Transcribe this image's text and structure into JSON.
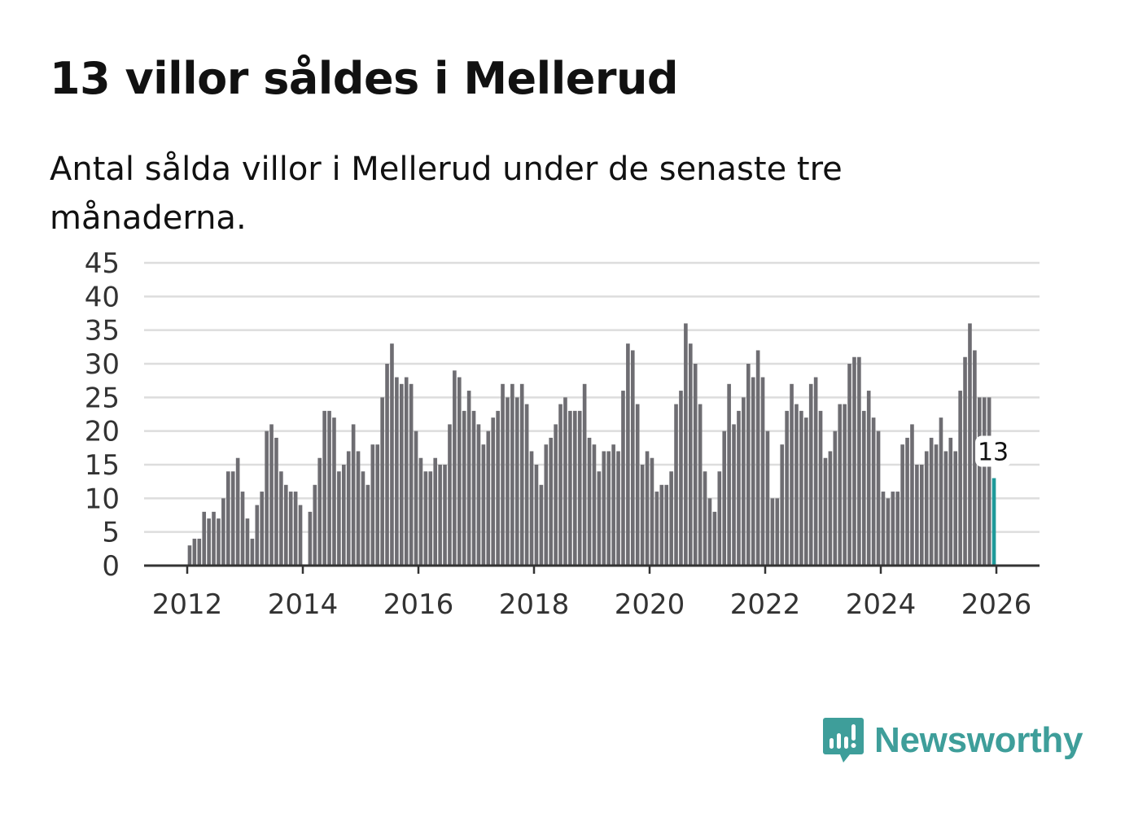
{
  "title": "13 villor såldes i Mellerud",
  "subtitle": "Antal sålda villor i Mellerud under de senaste tre månaderna.",
  "brand": {
    "name": "Newsworthy",
    "color": "#3e9e9a",
    "icon": "newsworthy-logo-icon"
  },
  "colors": {
    "bar": "#6e6d72",
    "highlight": "#1f9a9a",
    "grid": "#dddddd",
    "axis": "#333333"
  },
  "chart_data": {
    "type": "bar",
    "title": "13 villor såldes i Mellerud",
    "xlabel": "",
    "ylabel": "",
    "ylim": [
      0,
      45
    ],
    "yticks": [
      "0",
      "5",
      "10",
      "15",
      "20",
      "25",
      "30",
      "35",
      "40",
      "45"
    ],
    "xticks": [
      "2012",
      "2014",
      "2016",
      "2018",
      "2020",
      "2022",
      "2024",
      "2026"
    ],
    "grid": true,
    "start_month": "2011-04",
    "end_month": "2026-01",
    "highlight_label": "13",
    "values": [
      null,
      null,
      null,
      null,
      null,
      null,
      null,
      null,
      null,
      3,
      4,
      4,
      8,
      7,
      8,
      7,
      10,
      14,
      14,
      16,
      11,
      7,
      4,
      9,
      11,
      20,
      21,
      19,
      14,
      12,
      11,
      11,
      9,
      null,
      8,
      12,
      16,
      23,
      23,
      22,
      14,
      15,
      17,
      21,
      17,
      14,
      12,
      18,
      18,
      25,
      30,
      33,
      28,
      27,
      28,
      27,
      20,
      16,
      14,
      14,
      16,
      15,
      15,
      21,
      29,
      28,
      23,
      26,
      23,
      21,
      18,
      20,
      22,
      23,
      27,
      25,
      27,
      25,
      27,
      24,
      17,
      15,
      12,
      18,
      19,
      21,
      24,
      25,
      23,
      23,
      23,
      27,
      19,
      18,
      14,
      17,
      17,
      18,
      17,
      26,
      33,
      32,
      24,
      15,
      17,
      16,
      11,
      12,
      12,
      14,
      24,
      26,
      36,
      33,
      30,
      24,
      14,
      10,
      8,
      14,
      20,
      27,
      21,
      23,
      25,
      30,
      28,
      32,
      28,
      20,
      10,
      10,
      18,
      23,
      27,
      24,
      23,
      22,
      27,
      28,
      23,
      16,
      17,
      20,
      24,
      24,
      30,
      31,
      31,
      23,
      26,
      22,
      20,
      11,
      10,
      11,
      11,
      18,
      19,
      21,
      15,
      15,
      17,
      19,
      18,
      22,
      17,
      19,
      17,
      26,
      31,
      36,
      32,
      25,
      25,
      25,
      13
    ]
  }
}
